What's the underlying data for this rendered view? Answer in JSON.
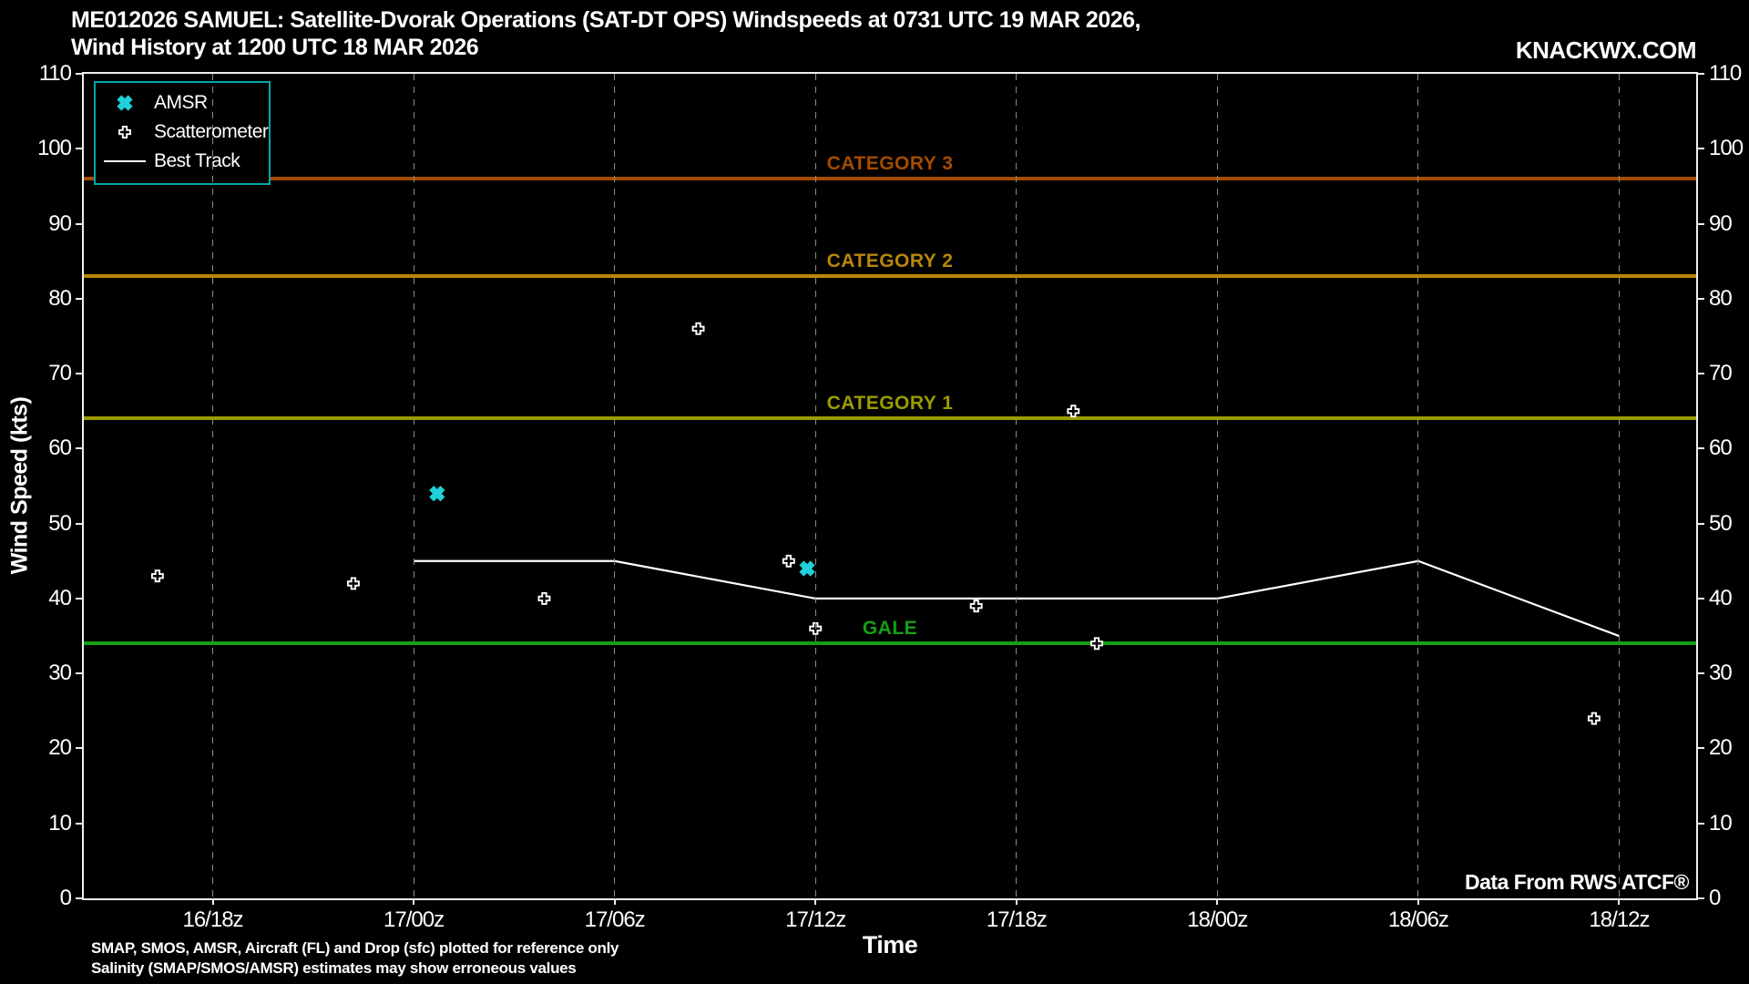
{
  "header": {
    "title_line1": "ME012026 SAMUEL: Satellite-Dvorak Operations (SAT-DT OPS) Windspeeds at 0731 UTC 19 MAR 2026,",
    "title_line2": "Wind History at 1200 UTC 18 MAR 2026",
    "brand": "KNACKWX.COM"
  },
  "footer": {
    "attribution": "Data From RWS ATCF®",
    "note_line1": "SMAP, SMOS, AMSR, Aircraft (FL) and Drop (sfc) plotted for reference only",
    "note_line2": "Salinity (SMAP/SMOS/AMSR) estimates may show erroneous values"
  },
  "chart_data": {
    "type": "scatter",
    "title": "ME012026 SAMUEL wind history",
    "xlabel": "Time",
    "ylabel": "Wind Speed (kts)",
    "ylim": [
      0,
      110
    ],
    "ytick_step": 10,
    "xlim_hours": [
      -3.85,
      44.3
    ],
    "x_ticks": [
      {
        "label": "16/18z",
        "hour": 0
      },
      {
        "label": "17/00z",
        "hour": 6
      },
      {
        "label": "17/06z",
        "hour": 12
      },
      {
        "label": "17/12z",
        "hour": 18
      },
      {
        "label": "17/18z",
        "hour": 24
      },
      {
        "label": "18/00z",
        "hour": 30
      },
      {
        "label": "18/06z",
        "hour": 36
      },
      {
        "label": "18/12z",
        "hour": 42
      }
    ],
    "grid": "vertical-dashed",
    "grid_color": "#8b8b8b",
    "background_color": "#000000",
    "axis_color": "#efefef",
    "legend": {
      "position": "top-left",
      "border_color": "#00a8a8",
      "items": [
        "AMSR",
        "Scatterometer",
        "Best Track"
      ]
    },
    "reference_lines": [
      {
        "label": "CATEGORY 3",
        "value_kts": 96,
        "color": "#a54b00"
      },
      {
        "label": "CATEGORY 2",
        "value_kts": 83,
        "color": "#b8860b"
      },
      {
        "label": "CATEGORY 1",
        "value_kts": 64,
        "color": "#9c9c00"
      },
      {
        "label": "GALE",
        "value_kts": 34,
        "color": "#14a014"
      }
    ],
    "series": [
      {
        "name": "AMSR",
        "type": "scatter",
        "marker": "x-filled",
        "color": "#1fd1d9",
        "points": [
          {
            "t_hours": 6.7,
            "kts": 54
          },
          {
            "t_hours": 17.75,
            "kts": 44
          }
        ]
      },
      {
        "name": "Scatterometer",
        "type": "scatter",
        "marker": "plus-outline",
        "color": "#ffffff",
        "points": [
          {
            "t_hours": -1.65,
            "kts": 43
          },
          {
            "t_hours": 4.2,
            "kts": 42
          },
          {
            "t_hours": 9.9,
            "kts": 40
          },
          {
            "t_hours": 14.5,
            "kts": 76
          },
          {
            "t_hours": 17.2,
            "kts": 45
          },
          {
            "t_hours": 18.0,
            "kts": 36
          },
          {
            "t_hours": 22.8,
            "kts": 39
          },
          {
            "t_hours": 25.7,
            "kts": 65
          },
          {
            "t_hours": 26.4,
            "kts": 34
          },
          {
            "t_hours": 41.25,
            "kts": 24
          }
        ]
      },
      {
        "name": "Best Track",
        "type": "line",
        "color": "#ffffff",
        "points": [
          {
            "t_hours": 6,
            "kts": 45
          },
          {
            "t_hours": 12,
            "kts": 45
          },
          {
            "t_hours": 18,
            "kts": 40
          },
          {
            "t_hours": 30,
            "kts": 40
          },
          {
            "t_hours": 36,
            "kts": 45
          },
          {
            "t_hours": 42,
            "kts": 35
          }
        ]
      }
    ]
  }
}
